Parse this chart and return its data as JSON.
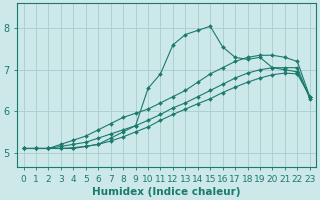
{
  "xlabel": "Humidex (Indice chaleur)",
  "xlim": [
    -0.5,
    23.5
  ],
  "ylim": [
    4.65,
    8.6
  ],
  "background_color": "#cce8e8",
  "grid_color": "#aacccc",
  "line_color": "#1a7a6e",
  "lines": [
    {
      "x": [
        0,
        1,
        2,
        3,
        4,
        5,
        6,
        7,
        8,
        9,
        10,
        11,
        12,
        13,
        14,
        15,
        16,
        17,
        18,
        19,
        20,
        21,
        22,
        23
      ],
      "y": [
        5.1,
        5.1,
        5.1,
        5.1,
        5.1,
        5.15,
        5.2,
        5.35,
        5.5,
        5.65,
        6.55,
        6.9,
        7.6,
        7.85,
        7.95,
        8.05,
        7.55,
        7.3,
        7.25,
        7.3,
        7.05,
        7.05,
        7.05,
        6.3
      ]
    },
    {
      "x": [
        0,
        1,
        2,
        3,
        4,
        5,
        6,
        7,
        8,
        9,
        10,
        11,
        12,
        13,
        14,
        15,
        16,
        17,
        18,
        19,
        20,
        21,
        22,
        23
      ],
      "y": [
        5.1,
        5.1,
        5.1,
        5.2,
        5.3,
        5.4,
        5.55,
        5.7,
        5.85,
        5.95,
        6.05,
        6.2,
        6.35,
        6.5,
        6.7,
        6.9,
        7.05,
        7.2,
        7.3,
        7.35,
        7.35,
        7.3,
        7.2,
        6.35
      ]
    },
    {
      "x": [
        0,
        1,
        2,
        3,
        4,
        5,
        6,
        7,
        8,
        9,
        10,
        11,
        12,
        13,
        14,
        15,
        16,
        17,
        18,
        19,
        20,
        21,
        22,
        23
      ],
      "y": [
        5.1,
        5.1,
        5.1,
        5.15,
        5.2,
        5.25,
        5.35,
        5.45,
        5.55,
        5.65,
        5.78,
        5.92,
        6.08,
        6.2,
        6.35,
        6.5,
        6.65,
        6.8,
        6.92,
        7.0,
        7.05,
        7.0,
        6.95,
        6.35
      ]
    },
    {
      "x": [
        0,
        1,
        2,
        3,
        4,
        5,
        6,
        7,
        8,
        9,
        10,
        11,
        12,
        13,
        14,
        15,
        16,
        17,
        18,
        19,
        20,
        21,
        22,
        23
      ],
      "y": [
        5.1,
        5.1,
        5.1,
        5.1,
        5.12,
        5.15,
        5.2,
        5.28,
        5.38,
        5.5,
        5.62,
        5.78,
        5.92,
        6.05,
        6.18,
        6.3,
        6.45,
        6.58,
        6.7,
        6.8,
        6.88,
        6.92,
        6.9,
        6.35
      ]
    }
  ],
  "xticks": [
    0,
    1,
    2,
    3,
    4,
    5,
    6,
    7,
    8,
    9,
    10,
    11,
    12,
    13,
    14,
    15,
    16,
    17,
    18,
    19,
    20,
    21,
    22,
    23
  ],
  "yticks": [
    5,
    6,
    7,
    8
  ],
  "tick_fontsize": 6.5,
  "label_fontsize": 7.5
}
